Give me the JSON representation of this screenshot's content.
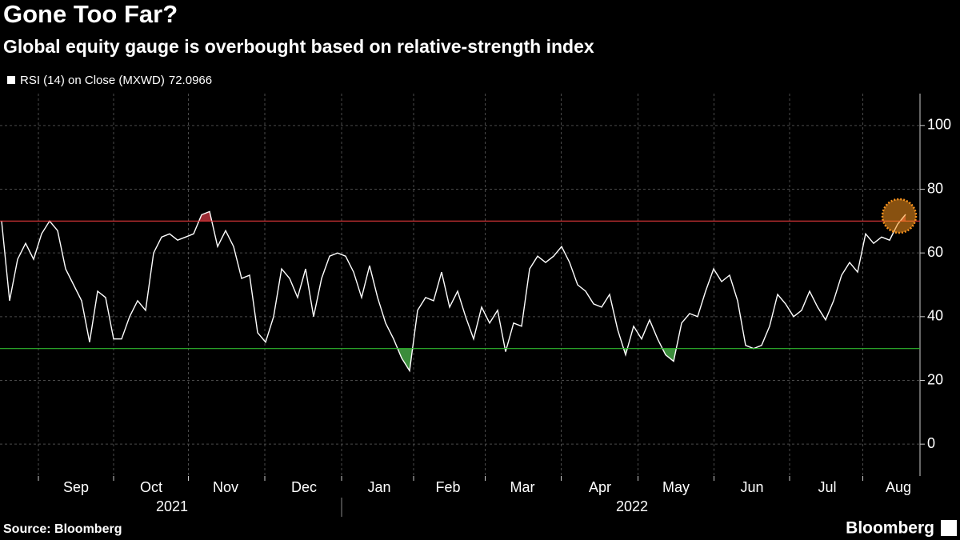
{
  "chart_data": {
    "type": "line",
    "title": "Gone Too Far?",
    "subtitle": "Global equity gauge is overbought based on relative-strength index",
    "source": "Source: Bloomberg",
    "brand": "Bloomberg",
    "series": [
      {
        "name": "RSI (14)  on Close (MXWD)",
        "color": "#ffffff",
        "values": [
          70,
          45,
          58,
          63,
          58,
          66,
          70,
          67,
          55,
          50,
          45,
          32,
          48,
          46,
          33,
          33,
          40,
          45,
          42,
          60,
          65,
          66,
          64,
          65,
          66,
          72,
          73,
          62,
          67,
          62,
          52,
          53,
          35,
          32,
          40,
          55,
          52,
          46,
          55,
          40,
          52,
          59,
          60,
          59,
          54,
          46,
          56,
          46,
          38,
          33,
          27,
          23,
          42,
          46,
          45,
          54,
          43,
          48,
          40,
          33,
          43,
          38,
          42,
          29,
          38,
          37,
          55,
          59,
          57,
          59,
          62,
          57,
          50,
          48,
          44,
          43,
          47,
          36,
          28,
          37,
          33,
          39,
          33,
          28,
          26,
          38,
          41,
          40,
          48,
          55,
          51,
          53,
          45,
          31,
          30,
          31,
          37,
          47,
          44,
          40,
          42,
          48,
          43,
          39,
          45,
          53,
          57,
          54,
          66,
          63,
          65,
          64,
          69,
          72.0966
        ]
      }
    ],
    "thresholds": [
      {
        "value": 70,
        "color": "#e8383b",
        "fill": "#9c2a33"
      },
      {
        "value": 30,
        "color": "#2eb82e",
        "fill": "#3b8c3b"
      }
    ],
    "xlim": [
      -0.2,
      114.8
    ],
    "xticks": [
      {
        "value": 9.3,
        "label": "Sep"
      },
      {
        "value": 18.7,
        "label": "Oct"
      },
      {
        "value": 28.0,
        "label": "Nov"
      },
      {
        "value": 37.8,
        "label": "Dec"
      },
      {
        "value": 47.2,
        "label": "Jan"
      },
      {
        "value": 55.8,
        "label": "Feb"
      },
      {
        "value": 65.1,
        "label": "Mar"
      },
      {
        "value": 74.8,
        "label": "Apr"
      },
      {
        "value": 84.3,
        "label": "May"
      },
      {
        "value": 93.8,
        "label": "Jun"
      },
      {
        "value": 103.2,
        "label": "Jul"
      },
      {
        "value": 112.1,
        "label": "Aug"
      }
    ],
    "year_labels": [
      {
        "value": 21.3,
        "label": "2021"
      },
      {
        "value": 78.8,
        "label": "2022"
      }
    ],
    "ylim": [
      -10,
      110
    ],
    "yticks": [
      0,
      20,
      40,
      60,
      80,
      100
    ],
    "grid": true,
    "highlight_color": "#f7931e"
  }
}
